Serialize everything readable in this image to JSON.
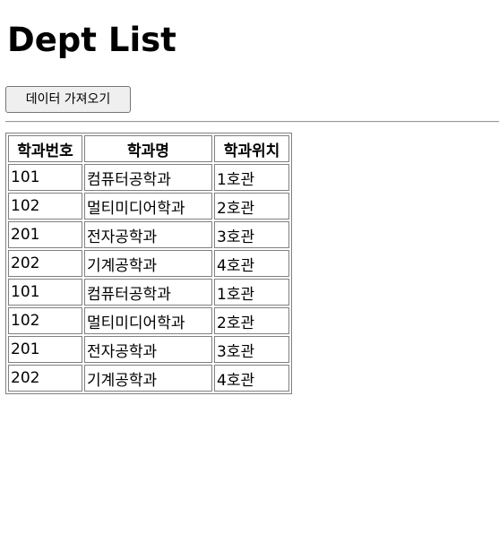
{
  "page": {
    "title": "Dept List"
  },
  "actions": {
    "fetch_label": "데이터 가져오기"
  },
  "table": {
    "headers": [
      "학과번호",
      "학과명",
      "학과위치"
    ],
    "rows": [
      [
        "101",
        "컴퓨터공학과",
        "1호관"
      ],
      [
        "102",
        "멀티미디어학과",
        "2호관"
      ],
      [
        "201",
        "전자공학과",
        "3호관"
      ],
      [
        "202",
        "기계공학과",
        "4호관"
      ],
      [
        "101",
        "컴퓨터공학과",
        "1호관"
      ],
      [
        "102",
        "멀티미디어학과",
        "2호관"
      ],
      [
        "201",
        "전자공학과",
        "3호관"
      ],
      [
        "202",
        "기계공학과",
        "4호관"
      ]
    ]
  }
}
